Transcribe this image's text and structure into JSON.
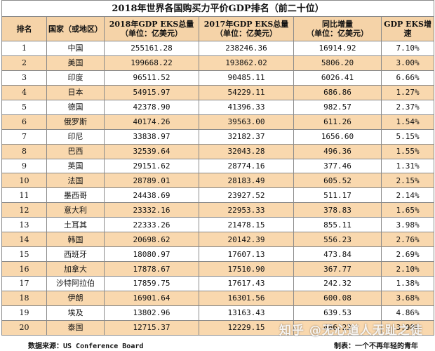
{
  "title": "2018年世界各国购买力平价GDP排名（前二十位）",
  "headers": {
    "rank": "排名",
    "country": "国家（或地区）",
    "gdp2018": [
      "2018年GDP EKS总量",
      "（单位：亿美元）"
    ],
    "gdp2017": [
      "2017年GDP EKS总量",
      "（单位：亿美元）"
    ],
    "growth": [
      "同比增量",
      "（单位：亿美元）"
    ],
    "rate": "GDP  EKS增速"
  },
  "rows": [
    {
      "rank": "1",
      "country": "中国",
      "gdp2018": "255161.28",
      "gdp2017": "238246.36",
      "growth": "16914.92",
      "rate": "7.10%"
    },
    {
      "rank": "2",
      "country": "美国",
      "gdp2018": "199668.22",
      "gdp2017": "193862.02",
      "growth": "5806.20",
      "rate": "3.00%"
    },
    {
      "rank": "3",
      "country": "印度",
      "gdp2018": "96511.52",
      "gdp2017": "90485.11",
      "growth": "6026.41",
      "rate": "6.66%"
    },
    {
      "rank": "4",
      "country": "日本",
      "gdp2018": "54915.97",
      "gdp2017": "54229.11",
      "growth": "686.86",
      "rate": "1.27%"
    },
    {
      "rank": "5",
      "country": "德国",
      "gdp2018": "42378.90",
      "gdp2017": "41396.33",
      "growth": "982.57",
      "rate": "2.37%"
    },
    {
      "rank": "6",
      "country": "俄罗斯",
      "gdp2018": "40174.26",
      "gdp2017": "39563.00",
      "growth": "611.26",
      "rate": "1.54%"
    },
    {
      "rank": "7",
      "country": "印尼",
      "gdp2018": "33838.97",
      "gdp2017": "32182.37",
      "growth": "1656.60",
      "rate": "5.15%"
    },
    {
      "rank": "8",
      "country": "巴西",
      "gdp2018": "32539.64",
      "gdp2017": "32043.28",
      "growth": "496.36",
      "rate": "1.55%"
    },
    {
      "rank": "9",
      "country": "英国",
      "gdp2018": "29151.62",
      "gdp2017": "28774.16",
      "growth": "377.46",
      "rate": "1.31%"
    },
    {
      "rank": "10",
      "country": "法国",
      "gdp2018": "28789.01",
      "gdp2017": "28183.49",
      "growth": "605.52",
      "rate": "2.15%"
    },
    {
      "rank": "11",
      "country": "墨西哥",
      "gdp2018": "24438.69",
      "gdp2017": "23927.52",
      "growth": "511.17",
      "rate": "2.14%"
    },
    {
      "rank": "12",
      "country": "意大利",
      "gdp2018": "23332.16",
      "gdp2017": "22953.33",
      "growth": "378.83",
      "rate": "1.65%"
    },
    {
      "rank": "13",
      "country": "土耳其",
      "gdp2018": "22333.26",
      "gdp2017": "21478.15",
      "growth": "855.11",
      "rate": "3.98%"
    },
    {
      "rank": "14",
      "country": "韩国",
      "gdp2018": "20698.62",
      "gdp2017": "20142.39",
      "growth": "556.23",
      "rate": "2.76%"
    },
    {
      "rank": "15",
      "country": "西班牙",
      "gdp2018": "18080.97",
      "gdp2017": "17607.13",
      "growth": "473.84",
      "rate": "2.69%"
    },
    {
      "rank": "16",
      "country": "加拿大",
      "gdp2018": "17878.67",
      "gdp2017": "17510.90",
      "growth": "367.77",
      "rate": "2.10%"
    },
    {
      "rank": "17",
      "country": "沙特阿拉伯",
      "gdp2018": "17859.75",
      "gdp2017": "17617.43",
      "growth": "242.32",
      "rate": "1.38%"
    },
    {
      "rank": "18",
      "country": "伊朗",
      "gdp2018": "16901.64",
      "gdp2017": "16301.56",
      "growth": "600.08",
      "rate": "3.68%"
    },
    {
      "rank": "19",
      "country": "埃及",
      "gdp2018": "13802.96",
      "gdp2017": "13163.43",
      "growth": "639.53",
      "rate": "4.86%"
    },
    {
      "rank": "20",
      "country": "泰国",
      "gdp2018": "12715.37",
      "gdp2017": "12229.15",
      "growth": "486.22",
      "rate": "3.98%"
    }
  ],
  "footer": {
    "source_label": "数据来源：",
    "source_value": "US Conference Board",
    "credit": "制表：一个不再年轻的青年"
  },
  "watermark": "知乎 @无心道人无趾之徒"
}
